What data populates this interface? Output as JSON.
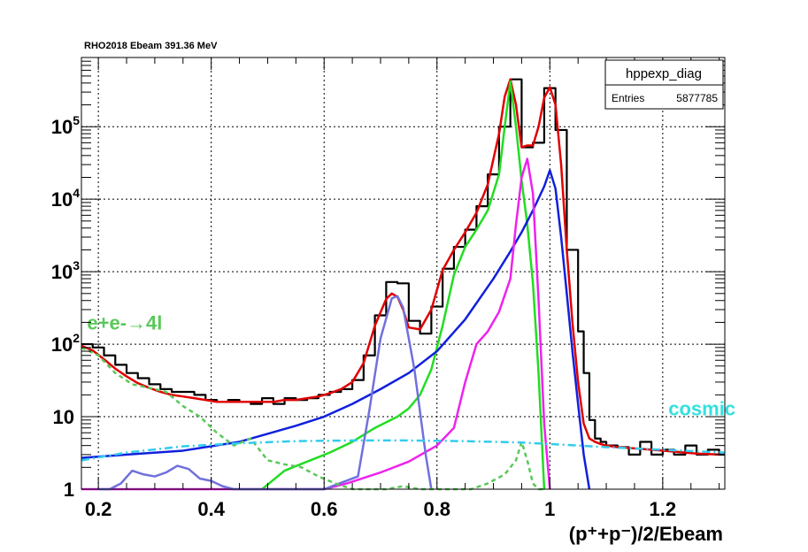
{
  "chart_data": {
    "type": "line",
    "title": "RHO2018 Ebeam 391.36 MeV",
    "xlabel": "(p⁺+p⁻)/2/Ebeam",
    "ylabel": "",
    "xlim": [
      0.17,
      1.31
    ],
    "ylim": [
      1,
      900000
    ],
    "yscale": "log",
    "grid": true,
    "x_ticks": [
      {
        "value": 0.2,
        "label": "0.2"
      },
      {
        "value": 0.4,
        "label": "0.4"
      },
      {
        "value": 0.6,
        "label": "0.6"
      },
      {
        "value": 0.8,
        "label": "0.8"
      },
      {
        "value": 1.0,
        "label": "1"
      },
      {
        "value": 1.2,
        "label": "1.2"
      }
    ],
    "y_ticks": [
      {
        "value": 1,
        "label": "1",
        "exp": ""
      },
      {
        "value": 10,
        "label": "10",
        "exp": ""
      },
      {
        "value": 100,
        "label": "10",
        "exp": "2"
      },
      {
        "value": 1000,
        "label": "10",
        "exp": "3"
      },
      {
        "value": 10000,
        "label": "10",
        "exp": "4"
      },
      {
        "value": 100000,
        "label": "10",
        "exp": "5"
      }
    ],
    "stats_box": {
      "name": "hppexp_diag",
      "entries_label": "Entries",
      "entries_value": "5877785",
      "placement": "top-right"
    },
    "annotations": [
      {
        "text": "e+e-→4l",
        "color": "#5ac85a",
        "x": 0.18,
        "y": 160
      },
      {
        "text": "cosmic",
        "color": "#33e0e0",
        "x": 1.21,
        "y": 10.5
      }
    ],
    "series": [
      {
        "style": "histogram",
        "color": "#000000",
        "x": [
          0.17,
          0.19,
          0.21,
          0.23,
          0.25,
          0.27,
          0.29,
          0.31,
          0.33,
          0.35,
          0.37,
          0.39,
          0.41,
          0.43,
          0.45,
          0.47,
          0.49,
          0.51,
          0.53,
          0.55,
          0.57,
          0.59,
          0.61,
          0.63,
          0.65,
          0.67,
          0.69,
          0.71,
          0.73,
          0.75,
          0.77,
          0.79,
          0.81,
          0.83,
          0.85,
          0.87,
          0.89,
          0.91,
          0.93,
          0.95,
          0.97,
          0.99,
          1.01,
          1.03,
          1.05,
          1.06,
          1.07,
          1.08,
          1.09,
          1.1,
          1.12,
          1.14,
          1.16,
          1.18,
          1.2,
          1.22,
          1.24,
          1.26,
          1.28,
          1.3
        ],
        "y": [
          100,
          90,
          70,
          52,
          40,
          34,
          28,
          24,
          22,
          22,
          20,
          17,
          16,
          17,
          16,
          15,
          18,
          15,
          18,
          17,
          18,
          20,
          22,
          24,
          32,
          70,
          250,
          720,
          690,
          210,
          140,
          330,
          1100,
          2200,
          3800,
          8000,
          22000,
          100000,
          450000,
          52000,
          60000,
          340000,
          90000,
          2000,
          150,
          40,
          9,
          5,
          4.5,
          4,
          3.8,
          3,
          4.5,
          3,
          3.5,
          3,
          4,
          3,
          3.5,
          3
        ]
      },
      {
        "style": "line",
        "color": "#e00000",
        "x": [
          0.17,
          0.19,
          0.21,
          0.23,
          0.25,
          0.27,
          0.29,
          0.31,
          0.33,
          0.35,
          0.37,
          0.39,
          0.41,
          0.43,
          0.45,
          0.47,
          0.49,
          0.51,
          0.53,
          0.55,
          0.57,
          0.59,
          0.61,
          0.63,
          0.65,
          0.67,
          0.69,
          0.71,
          0.72,
          0.73,
          0.74,
          0.75,
          0.77,
          0.79,
          0.81,
          0.83,
          0.85,
          0.87,
          0.89,
          0.91,
          0.92,
          0.93,
          0.94,
          0.95,
          0.96,
          0.97,
          0.98,
          0.99,
          1.0,
          1.01,
          1.02,
          1.03,
          1.04,
          1.05,
          1.06,
          1.07,
          1.08,
          1.09,
          1.1,
          1.12,
          1.14,
          1.16,
          1.18,
          1.2,
          1.22,
          1.24,
          1.26,
          1.28,
          1.3
        ],
        "y": [
          95,
          82,
          62,
          46,
          36,
          29,
          25,
          22,
          20,
          19,
          18,
          17,
          16,
          16,
          16,
          16,
          16,
          16,
          17,
          17,
          18,
          19,
          21,
          24,
          30,
          55,
          180,
          420,
          500,
          450,
          300,
          170,
          160,
          300,
          1050,
          2000,
          3500,
          6500,
          16000,
          80000,
          260000,
          450000,
          200000,
          52000,
          55000,
          55000,
          100000,
          250000,
          350000,
          200000,
          30000,
          2000,
          200,
          30,
          8,
          5,
          4.5,
          4.2,
          4,
          3.8,
          3.7,
          3.6,
          3.5,
          3.4,
          3.3,
          3.2,
          3.1,
          3.05,
          3
        ]
      },
      {
        "style": "line",
        "color": "#22dd22",
        "x": [
          0.49,
          0.53,
          0.57,
          0.61,
          0.65,
          0.69,
          0.73,
          0.75,
          0.77,
          0.79,
          0.81,
          0.83,
          0.85,
          0.87,
          0.89,
          0.91,
          0.92,
          0.93,
          0.94,
          0.95,
          0.96,
          0.97,
          0.98,
          0.99
        ],
        "y": [
          1,
          1.8,
          2.4,
          3.2,
          4.5,
          7,
          10,
          13,
          20,
          45,
          180,
          900,
          2200,
          3800,
          7000,
          22000,
          100000,
          420000,
          100000,
          18000,
          4500,
          700,
          40,
          1
        ]
      },
      {
        "style": "line",
        "color": "#1020dd",
        "x": [
          0.17,
          0.25,
          0.35,
          0.45,
          0.55,
          0.6,
          0.65,
          0.7,
          0.75,
          0.8,
          0.85,
          0.9,
          0.93,
          0.95,
          0.97,
          0.99,
          1.0,
          1.01,
          1.02,
          1.03,
          1.04,
          1.05,
          1.06,
          1.07
        ],
        "y": [
          2.7,
          3.0,
          3.4,
          4.5,
          7.5,
          10,
          15,
          24,
          40,
          80,
          220,
          800,
          1900,
          3500,
          7000,
          15000,
          25000,
          14000,
          3000,
          500,
          80,
          15,
          3,
          1
        ]
      },
      {
        "style": "line",
        "color": "#ee22ee",
        "x": [
          0.17,
          0.6,
          0.64,
          0.7,
          0.75,
          0.8,
          0.83,
          0.85,
          0.87,
          0.89,
          0.91,
          0.93,
          0.94,
          0.95,
          0.96,
          0.97,
          0.98,
          0.99,
          1.0
        ],
        "y": [
          1,
          1,
          1.2,
          1.7,
          2.4,
          4,
          7,
          30,
          100,
          150,
          280,
          800,
          4500,
          20000,
          36000,
          12000,
          400,
          8,
          1
        ]
      },
      {
        "style": "line",
        "color": "#7070dd",
        "x": [
          0.2,
          0.22,
          0.24,
          0.26,
          0.28,
          0.3,
          0.32,
          0.34,
          0.36,
          0.38,
          0.4,
          0.42,
          0.44,
          0.46,
          0.5,
          0.6,
          0.66,
          0.68,
          0.7,
          0.72,
          0.73,
          0.74,
          0.76,
          0.78,
          0.79
        ],
        "y": [
          1,
          1,
          1.2,
          1.8,
          1.6,
          1.5,
          1.7,
          2.1,
          1.9,
          1.4,
          1.3,
          1.1,
          1,
          1,
          1,
          1,
          1.5,
          12,
          120,
          430,
          460,
          320,
          45,
          3,
          1
        ]
      },
      {
        "style": "dashed",
        "color": "#5ac85a",
        "x": [
          0.17,
          0.2,
          0.23,
          0.26,
          0.29,
          0.32,
          0.35,
          0.38,
          0.41,
          0.44,
          0.47,
          0.5,
          0.53,
          0.56,
          0.59,
          0.62,
          0.65,
          0.68,
          0.71,
          0.74,
          0.77,
          0.8,
          0.83,
          0.86,
          0.89,
          0.92,
          0.94,
          0.95,
          0.96,
          0.97,
          0.98,
          0.99
        ],
        "y": [
          90,
          70,
          40,
          28,
          25,
          22,
          14,
          10,
          6,
          4,
          5,
          2.5,
          2.2,
          2,
          1.5,
          1.2,
          1,
          1,
          1,
          1.1,
          1,
          1,
          1,
          1,
          1.2,
          1.6,
          2.5,
          4.5,
          2.5,
          1.2,
          1,
          1
        ]
      },
      {
        "style": "dashdot",
        "color": "#33ccee",
        "x": [
          0.17,
          0.25,
          0.35,
          0.45,
          0.55,
          0.65,
          0.75,
          0.85,
          0.95,
          1.0,
          1.05,
          1.1,
          1.2,
          1.31
        ],
        "y": [
          2.5,
          3.2,
          3.9,
          4.3,
          4.6,
          4.7,
          4.7,
          4.6,
          4.4,
          4.2,
          4.0,
          3.8,
          3.5,
          3.2
        ]
      }
    ]
  }
}
